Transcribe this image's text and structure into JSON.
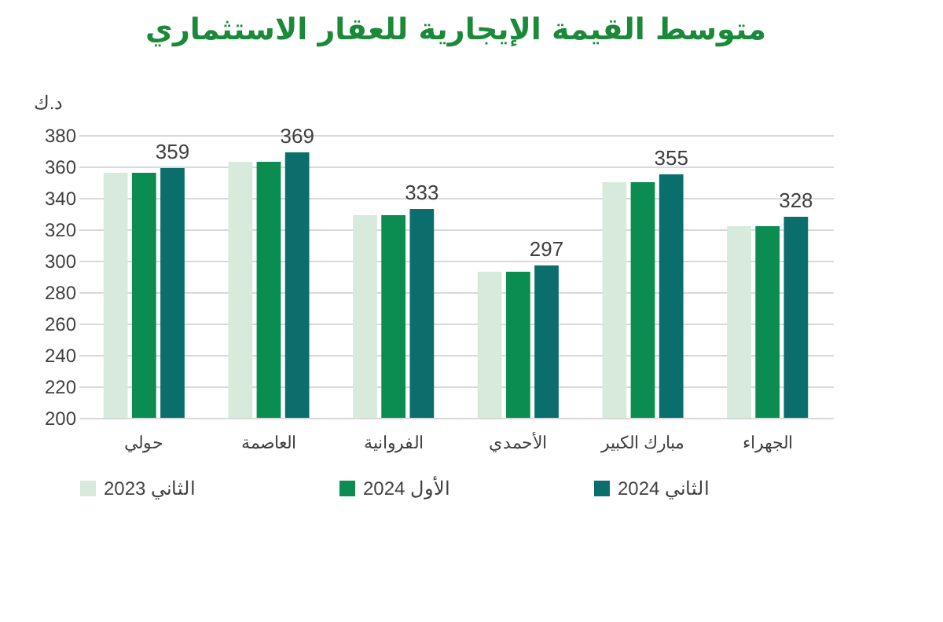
{
  "chart_data": {
    "type": "bar",
    "title": "متوسط القيمة الإيجارية للعقار الاستثماري",
    "ylabel": "د.ك",
    "categories": [
      "حولي",
      "العاصمة",
      "الفروانية",
      "الأحمدي",
      "مبارك الكبير",
      "الجهراء"
    ],
    "series": [
      {
        "name": "الثاني 2023",
        "color": "#d8eadb",
        "values": [
          356,
          363,
          329,
          293,
          350,
          322
        ]
      },
      {
        "name": "الأول 2024",
        "color": "#0b8c50",
        "values": [
          356,
          363,
          329,
          293,
          350,
          322
        ]
      },
      {
        "name": "الثاني 2024",
        "color": "#0a6f6c",
        "values": [
          359,
          369,
          333,
          297,
          355,
          328
        ],
        "value_labels": [
          "359",
          "369",
          "333",
          "297",
          "355",
          "328"
        ]
      }
    ],
    "ylim": [
      200,
      380
    ],
    "yticks": [
      200,
      220,
      240,
      260,
      280,
      300,
      320,
      340,
      360,
      380
    ],
    "grid": "y",
    "legend": "bottom"
  }
}
